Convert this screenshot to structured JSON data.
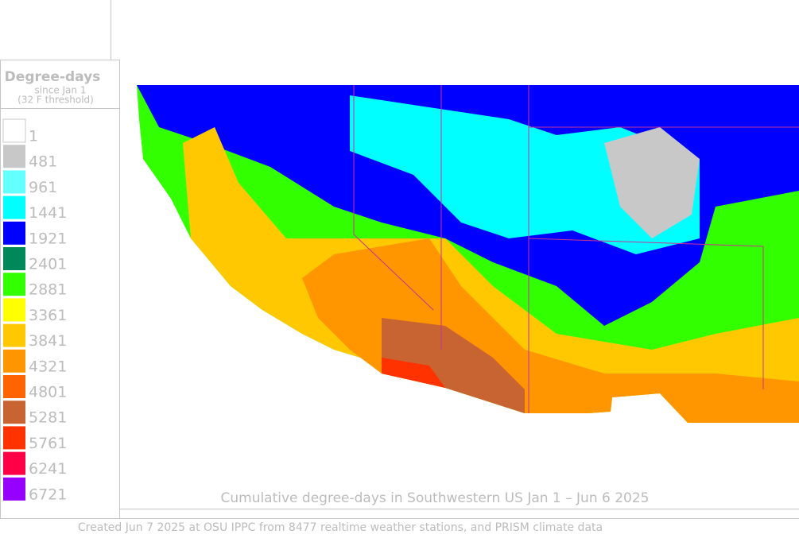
{
  "legend": {
    "title": "Degree-days",
    "subtitle": [
      "since Jan 1",
      "(32 F threshold)"
    ],
    "entries": [
      {
        "value": 1,
        "color": "#ffffff"
      },
      {
        "value": 481,
        "color": "#c8c8c8"
      },
      {
        "value": 961,
        "color": "#64ffff"
      },
      {
        "value": 1441,
        "color": "#00ffff"
      },
      {
        "value": 1921,
        "color": "#0000ff"
      },
      {
        "value": 2401,
        "color": "#00875a"
      },
      {
        "value": 2881,
        "color": "#32ff00"
      },
      {
        "value": 3361,
        "color": "#ffff00"
      },
      {
        "value": 3841,
        "color": "#ffc800"
      },
      {
        "value": 4321,
        "color": "#ff9600"
      },
      {
        "value": 4801,
        "color": "#ff6400"
      },
      {
        "value": 5281,
        "color": "#c86432"
      },
      {
        "value": 5761,
        "color": "#ff3200"
      },
      {
        "value": 6241,
        "color": "#ff0046"
      },
      {
        "value": 6721,
        "color": "#9600ff"
      }
    ]
  },
  "caption": "Cumulative degree-days in Southwestern US Jan 1 – Jun 6 2025",
  "footer": "Created Jun 7 2025 at OSU IPPC from 8477 realtime weather stations, and PRISM climate data"
}
